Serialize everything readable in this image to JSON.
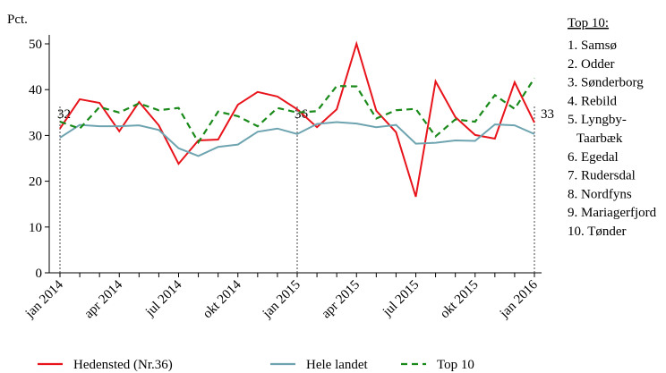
{
  "chart_data": {
    "type": "line",
    "y_label": "Pct.",
    "categories": [
      "jan 2014",
      null,
      null,
      "apr 2014",
      null,
      null,
      "jul 2014",
      null,
      null,
      "okt 2014",
      null,
      null,
      "jan 2015",
      null,
      null,
      "apr 2015",
      null,
      null,
      "jul 2015",
      null,
      null,
      "okt 2015",
      null,
      null,
      "jan 2016"
    ],
    "series": [
      {
        "name": "Hedensted (Nr.36)",
        "color": "#e8141b",
        "dash": "solid",
        "values": [
          31.5,
          37.9,
          37.1,
          30.9,
          37.3,
          32.2,
          23.8,
          28.9,
          29.1,
          36.7,
          39.5,
          38.5,
          35.7,
          31.8,
          35.7,
          50,
          35.4,
          30.7,
          16.6,
          41.8,
          34,
          30.1,
          29.3,
          41.6,
          32.8
        ]
      },
      {
        "name": "Hele landet",
        "color": "#6ea4b0",
        "dash": "solid",
        "values": [
          29.5,
          32.3,
          32,
          32,
          32.2,
          31.2,
          27.2,
          25.5,
          27.5,
          28,
          30.8,
          31.5,
          30.3,
          32.5,
          32.9,
          32.6,
          31.8,
          32.3,
          28.2,
          28.4,
          28.9,
          28.8,
          32.4,
          32.2,
          30.3
        ]
      },
      {
        "name": "Top 10",
        "color": "#1a8a1a",
        "dash": "dashed",
        "values": [
          33,
          31.5,
          36.2,
          35,
          37,
          35.5,
          36,
          28.5,
          35.2,
          34.2,
          32,
          36,
          35,
          35.3,
          40.8,
          40.7,
          33.7,
          35.5,
          35.8,
          29.8,
          33.5,
          33,
          38.8,
          35.8,
          42.5
        ]
      }
    ],
    "ylim": [
      0,
      50
    ],
    "yticks": [
      0,
      10,
      20,
      30,
      40,
      50
    ],
    "grid": false,
    "legend": "bottom",
    "annotations": [
      {
        "x": "jan 2014",
        "text": "32"
      },
      {
        "x": "jan 2015",
        "text": "36"
      },
      {
        "x": "jan 2016",
        "text": "33"
      }
    ],
    "side_list": {
      "title": "Top 10:",
      "lines": [
        "1. Samsø",
        "2. Odder",
        "3. Sønderborg",
        "4. Rebild",
        "5. Lyngby-",
        "Taarbæk",
        "6. Egedal",
        "7. Rudersdal",
        "8. Nordfyns",
        "9. Mariagerfjord",
        "10. Tønder"
      ]
    }
  }
}
